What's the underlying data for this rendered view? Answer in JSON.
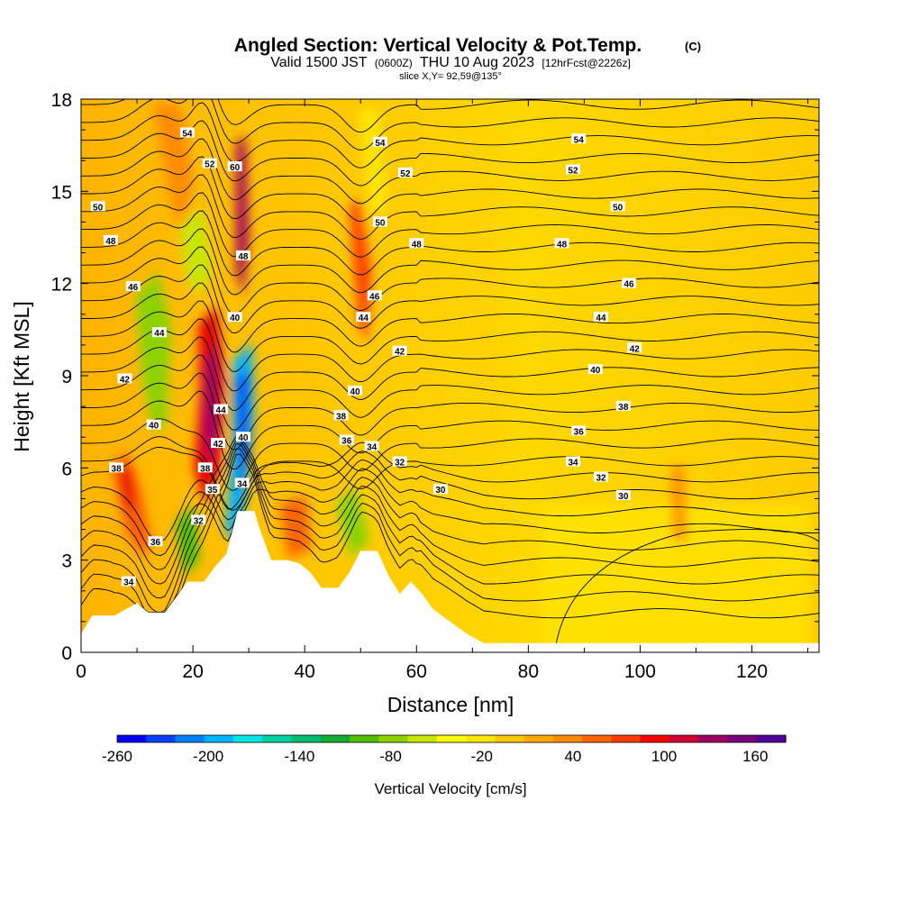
{
  "chart_data": {
    "type": "heatmap",
    "title": "Angled Section: Vertical Velocity & Pot.Temp.",
    "title_units": "(C)",
    "subtitle_main": "Valid 1500 JST",
    "subtitle_z": "(0600Z)",
    "subtitle_date": "THU 10 Aug 2023",
    "subtitle_fcst": "[12hrFcst@2226z]",
    "slice_text": "slice X,Y= 92,59@135°",
    "xlabel": "Distance [nm]",
    "ylabel": "Height [Kft MSL]",
    "xlim": [
      0,
      132
    ],
    "ylim": [
      0,
      18
    ],
    "x_ticks": [
      0,
      20,
      40,
      60,
      80,
      100,
      120
    ],
    "y_ticks": [
      0,
      3,
      6,
      9,
      12,
      15,
      18
    ],
    "colorbar": {
      "label": "Vertical Velocity [cm/s]",
      "range": [
        -260,
        180
      ],
      "tick_labels": [
        "-260",
        "-200",
        "-140",
        "-80",
        "-20",
        "40",
        "100",
        "160"
      ],
      "tick_values": [
        -260,
        -200,
        -140,
        -80,
        -20,
        40,
        100,
        160
      ],
      "colors": [
        "#0000ff",
        "#0040ff",
        "#0080ff",
        "#00b4ff",
        "#00e6e6",
        "#00d2a0",
        "#00be6e",
        "#14aa32",
        "#50be00",
        "#8cd200",
        "#c8e600",
        "#ffff00",
        "#ffe600",
        "#ffc800",
        "#ffaa00",
        "#ff8c00",
        "#ff6400",
        "#ff3c00",
        "#ff0000",
        "#d20032",
        "#a00064",
        "#780078",
        "#500096"
      ]
    },
    "terrain": [
      [
        0,
        0.6
      ],
      [
        2,
        1.2
      ],
      [
        6,
        1.2
      ],
      [
        8,
        1.4
      ],
      [
        10,
        1.6
      ],
      [
        12,
        1.3
      ],
      [
        15,
        1.3
      ],
      [
        17,
        1.8
      ],
      [
        19,
        2.3
      ],
      [
        22,
        2.3
      ],
      [
        24,
        2.8
      ],
      [
        26,
        3.2
      ],
      [
        28,
        4.6
      ],
      [
        31,
        4.6
      ],
      [
        32,
        4.0
      ],
      [
        34,
        3.0
      ],
      [
        37,
        3.0
      ],
      [
        39,
        2.9
      ],
      [
        41,
        2.6
      ],
      [
        43,
        2.1
      ],
      [
        46,
        2.1
      ],
      [
        48,
        2.6
      ],
      [
        50,
        3.3
      ],
      [
        53,
        3.3
      ],
      [
        55,
        2.5
      ],
      [
        57,
        1.9
      ],
      [
        59,
        2.3
      ],
      [
        61,
        1.9
      ],
      [
        63,
        1.4
      ],
      [
        66,
        1.0
      ],
      [
        69,
        0.6
      ],
      [
        72,
        0.3
      ],
      [
        132,
        0.3
      ]
    ],
    "contour_labels": [
      {
        "x": 19,
        "y": 16.9,
        "v": "54"
      },
      {
        "x": 23,
        "y": 15.9,
        "v": "52"
      },
      {
        "x": 27.5,
        "y": 15.8,
        "v": "60"
      },
      {
        "x": 3,
        "y": 14.5,
        "v": "50"
      },
      {
        "x": 5.3,
        "y": 13.4,
        "v": "48"
      },
      {
        "x": 9.3,
        "y": 11.9,
        "v": "46"
      },
      {
        "x": 14,
        "y": 10.4,
        "v": "44"
      },
      {
        "x": 7.8,
        "y": 8.9,
        "v": "42"
      },
      {
        "x": 13,
        "y": 7.4,
        "v": "40"
      },
      {
        "x": 6.3,
        "y": 6.0,
        "v": "38"
      },
      {
        "x": 13.3,
        "y": 3.6,
        "v": "36"
      },
      {
        "x": 8.5,
        "y": 2.3,
        "v": "34"
      },
      {
        "x": 29,
        "y": 12.9,
        "v": "48"
      },
      {
        "x": 27.5,
        "y": 10.9,
        "v": "40"
      },
      {
        "x": 25,
        "y": 7.9,
        "v": "44"
      },
      {
        "x": 24.5,
        "y": 6.8,
        "v": "42"
      },
      {
        "x": 29,
        "y": 7.0,
        "v": "40"
      },
      {
        "x": 22.2,
        "y": 6.0,
        "v": "38"
      },
      {
        "x": 28.8,
        "y": 5.5,
        "v": "34"
      },
      {
        "x": 23.5,
        "y": 5.3,
        "v": "35"
      },
      {
        "x": 21,
        "y": 4.3,
        "v": "32"
      },
      {
        "x": 53.5,
        "y": 16.6,
        "v": "54"
      },
      {
        "x": 58,
        "y": 15.6,
        "v": "52"
      },
      {
        "x": 53.5,
        "y": 14.0,
        "v": "50"
      },
      {
        "x": 60,
        "y": 13.3,
        "v": "48"
      },
      {
        "x": 52.5,
        "y": 11.6,
        "v": "46"
      },
      {
        "x": 50.5,
        "y": 10.9,
        "v": "44"
      },
      {
        "x": 57,
        "y": 9.8,
        "v": "42"
      },
      {
        "x": 49,
        "y": 8.5,
        "v": "40"
      },
      {
        "x": 46.5,
        "y": 7.7,
        "v": "38"
      },
      {
        "x": 47.5,
        "y": 6.9,
        "v": "36"
      },
      {
        "x": 52,
        "y": 6.7,
        "v": "34"
      },
      {
        "x": 57,
        "y": 6.2,
        "v": "32"
      },
      {
        "x": 64.3,
        "y": 5.3,
        "v": "30"
      },
      {
        "x": 89,
        "y": 16.7,
        "v": "54"
      },
      {
        "x": 88,
        "y": 15.7,
        "v": "52"
      },
      {
        "x": 96,
        "y": 14.5,
        "v": "50"
      },
      {
        "x": 86,
        "y": 13.3,
        "v": "48"
      },
      {
        "x": 98,
        "y": 12.0,
        "v": "46"
      },
      {
        "x": 93,
        "y": 10.9,
        "v": "44"
      },
      {
        "x": 99,
        "y": 9.9,
        "v": "42"
      },
      {
        "x": 92,
        "y": 9.2,
        "v": "40"
      },
      {
        "x": 97,
        "y": 8.0,
        "v": "38"
      },
      {
        "x": 89,
        "y": 7.2,
        "v": "36"
      },
      {
        "x": 88,
        "y": 6.2,
        "v": "34"
      },
      {
        "x": 93,
        "y": 5.7,
        "v": "32"
      },
      {
        "x": 97,
        "y": 5.1,
        "v": "30"
      }
    ]
  }
}
